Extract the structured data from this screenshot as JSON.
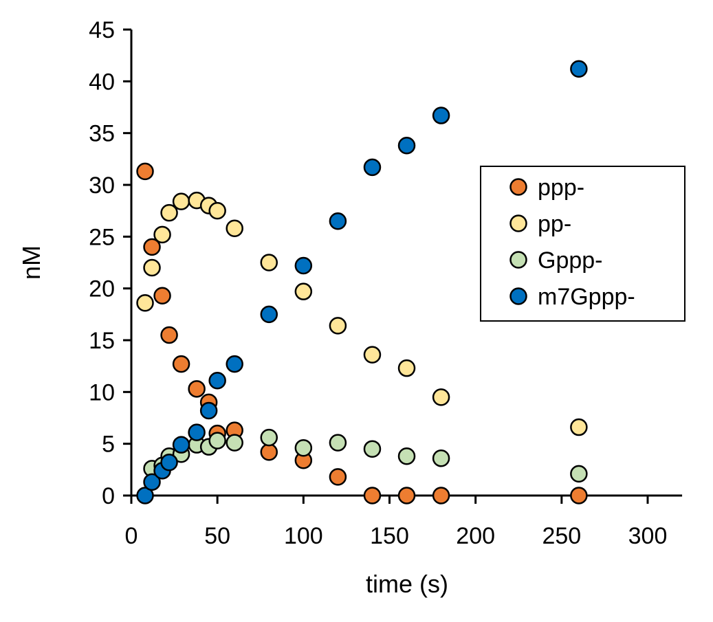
{
  "chart_data": {
    "type": "scatter",
    "title": "",
    "xlabel": "time (s)",
    "ylabel": "nM",
    "xlim": [
      0,
      320
    ],
    "ylim": [
      0,
      45
    ],
    "xticks": [
      0,
      50,
      100,
      150,
      200,
      250,
      300
    ],
    "yticks": [
      0,
      5,
      10,
      15,
      20,
      25,
      30,
      35,
      40,
      45
    ],
    "grid": false,
    "legend_position": "right",
    "series": [
      {
        "name": "ppp-",
        "color": "#ED7D31",
        "x": [
          8,
          12,
          18,
          22,
          29,
          38,
          45,
          50,
          60,
          80,
          100,
          120,
          140,
          160,
          180,
          260
        ],
        "y": [
          31.3,
          24.0,
          19.3,
          15.5,
          12.7,
          10.3,
          9.0,
          6.0,
          6.3,
          4.2,
          3.4,
          1.8,
          0,
          0,
          0,
          0
        ]
      },
      {
        "name": "pp-",
        "color": "#FFE699",
        "x": [
          8,
          12,
          18,
          22,
          29,
          38,
          45,
          50,
          60,
          80,
          100,
          120,
          140,
          160,
          180,
          260
        ],
        "y": [
          18.6,
          22.0,
          25.2,
          27.3,
          28.4,
          28.5,
          28.0,
          27.5,
          25.8,
          22.5,
          19.7,
          16.4,
          13.6,
          12.3,
          9.5,
          6.6
        ]
      },
      {
        "name": "Gppp-",
        "color": "#C5E0B4",
        "x": [
          12,
          18,
          22,
          29,
          38,
          45,
          50,
          60,
          80,
          100,
          120,
          140,
          160,
          180,
          260
        ],
        "y": [
          2.6,
          2.9,
          3.8,
          4.0,
          4.9,
          4.7,
          5.3,
          5.1,
          5.6,
          4.6,
          5.1,
          4.5,
          3.8,
          3.6,
          2.1
        ]
      },
      {
        "name": "m7Gppp-",
        "color": "#0070C0",
        "x": [
          8,
          12,
          18,
          22,
          29,
          38,
          45,
          50,
          60,
          80,
          100,
          120,
          140,
          160,
          180,
          260
        ],
        "y": [
          0,
          1.3,
          2.4,
          3.2,
          4.9,
          6.1,
          8.2,
          11.1,
          12.7,
          17.5,
          22.2,
          26.5,
          31.7,
          33.8,
          36.7,
          41.2
        ]
      }
    ]
  }
}
